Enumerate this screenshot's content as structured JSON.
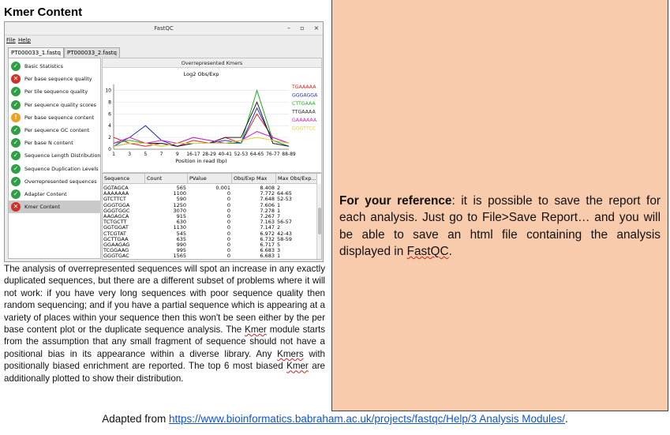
{
  "section_title": "Kmer Content",
  "window": {
    "title": "FastQC",
    "controls": {
      "minimize": "–",
      "maximize": "▫",
      "close": "×"
    },
    "menu": [
      "File",
      "Help"
    ],
    "tabs": [
      "PT000033_1.fastq",
      "PT000033_2.fastq"
    ],
    "modules": [
      {
        "label": "Basic Statistics",
        "status": "pass",
        "icon": "check-icon"
      },
      {
        "label": "Per base sequence quality",
        "status": "fail",
        "icon": "cross-icon"
      },
      {
        "label": "Per tile sequence quality",
        "status": "pass",
        "icon": "check-icon"
      },
      {
        "label": "Per sequence quality scores",
        "status": "pass",
        "icon": "check-icon"
      },
      {
        "label": "Per base sequence content",
        "status": "warn",
        "icon": "exclamation-icon"
      },
      {
        "label": "Per sequence GC content",
        "status": "pass",
        "icon": "check-icon"
      },
      {
        "label": "Per base N content",
        "status": "pass",
        "icon": "check-icon"
      },
      {
        "label": "Sequence Length Distribution",
        "status": "pass",
        "icon": "check-icon"
      },
      {
        "label": "Sequence Duplication Levels",
        "status": "pass",
        "icon": "check-icon"
      },
      {
        "label": "Overrepresented sequences",
        "status": "pass",
        "icon": "check-icon"
      },
      {
        "label": "Adapter Content",
        "status": "pass",
        "icon": "check-icon"
      },
      {
        "label": "Kmer Content",
        "status": "fail",
        "icon": "cross-icon",
        "selected": true
      }
    ],
    "status_colors": {
      "pass": "#2ea043",
      "fail": "#d22f27",
      "warn": "#f0a01c"
    },
    "panel_header": "Overrepresented Kmers",
    "table": {
      "headers": [
        "Sequence",
        "Count",
        "PValue",
        "Obs/Exp Max",
        "Max Obs/Exp..."
      ],
      "rows": [
        [
          "GGTAGCA",
          "565",
          "0.001",
          "8.408",
          "2"
        ],
        [
          "AAAAAAA",
          "1100",
          "0",
          "7.772",
          "64-65"
        ],
        [
          "GTCTTCT",
          "590",
          "0",
          "7.648",
          "52-53"
        ],
        [
          "GGGTGGA",
          "1250",
          "0",
          "7.606",
          "1"
        ],
        [
          "GGGTGGC",
          "3070",
          "0",
          "7.278",
          "1"
        ],
        [
          "AAGAGCA",
          "915",
          "0",
          "7.267",
          "7"
        ],
        [
          "TCTGCTT",
          "630",
          "0",
          "7.163",
          "56-57"
        ],
        [
          "GGTGGAT",
          "1130",
          "0",
          "7.147",
          "2"
        ],
        [
          "CTCGTAT",
          "545",
          "0",
          "6.972",
          "42-43"
        ],
        [
          "GCTTGAA",
          "635",
          "0",
          "6.732",
          "58-59"
        ],
        [
          "GGAAGAG",
          "990",
          "0",
          "6.717",
          "5"
        ],
        [
          "TCGGAAG",
          "995",
          "0",
          "6.683",
          "3"
        ],
        [
          "GGGTGAC",
          "1565",
          "0",
          "6.683",
          "1"
        ]
      ]
    }
  },
  "chart_data": {
    "type": "line",
    "title": "Log2 Obs/Exp",
    "xlabel": "Position in read (bp)",
    "ylabel": "",
    "x": [
      "1",
      "3",
      "5",
      "7",
      "9",
      "16-17",
      "28-29",
      "40-41",
      "52-53",
      "64-65",
      "76-77",
      "88-89"
    ],
    "ylim": [
      0,
      11
    ],
    "yticks": [
      0,
      2,
      4,
      6,
      8,
      10
    ],
    "grid": true,
    "legend_position": "right",
    "series": [
      {
        "name": "TGAAAAA",
        "color": "#e02020",
        "values": [
          2,
          1,
          0.5,
          1,
          0.5,
          1.5,
          1,
          2,
          1,
          6,
          2,
          1
        ]
      },
      {
        "name": "GGGAGGA",
        "color": "#2030c0",
        "values": [
          0.5,
          2,
          4,
          1.5,
          0.5,
          1,
          1,
          1.5,
          1,
          7,
          1.5,
          0.5
        ]
      },
      {
        "name": "CTTGAAA",
        "color": "#20b020",
        "values": [
          1,
          1.5,
          1,
          0.5,
          1,
          2,
          1.5,
          1,
          1,
          10,
          1.5,
          0.5
        ]
      },
      {
        "name": "TTGAAAA",
        "color": "#202020",
        "values": [
          0.5,
          1,
          1,
          1,
          0.5,
          1,
          1,
          2,
          2,
          8,
          1,
          0.5
        ]
      },
      {
        "name": "GAAAAAA",
        "color": "#d020d0",
        "values": [
          1,
          2,
          1,
          1.5,
          1,
          2,
          1.5,
          1,
          1.5,
          3,
          2,
          1
        ]
      },
      {
        "name": "GGGTTCC",
        "color": "#e0d040",
        "values": [
          0.5,
          1,
          1,
          0.5,
          1,
          1,
          1,
          1,
          1.5,
          2,
          1.5,
          1
        ]
      }
    ]
  },
  "description": {
    "p1": "The analysis of overrepresented sequences will spot an increase in any exactly duplicated sequences, but there are a different subset of problems where it will not work: if you have very long sequences with poor sequence quality then random sequencing; and if you have a partial sequence which is appearing at a variety of places within your sequence then this won't be seen either by the per base content plot or the duplicate sequence analysis. The ",
    "w1": "Kmer",
    "p2": " module starts from the assumption that any small fragment of sequence should not have a positional bias in its appearance within a diverse library. Any ",
    "w2": "Kmers",
    "p3": " with positionally biased enrichment are reported. The top 6 most biased ",
    "w3": "Kmer",
    "p4": " are additionally plotted to show their distribution."
  },
  "reference": {
    "lead": "For your reference",
    "body": ": it is possible to save the report for each analysis. Just go to File>Save Report… and you will be able to save an html file containing the analysis displayed in ",
    "app": "FastQC",
    "end": "."
  },
  "source": {
    "prefix": "Adapted from ",
    "link": "https://www.bioinformatics.babraham.ac.uk/projects/fastqc/Help/3 Analysis Modules/",
    "suffix": "."
  },
  "colors": {
    "reference_bg": "#f8cbad",
    "link": "#1155cc"
  }
}
